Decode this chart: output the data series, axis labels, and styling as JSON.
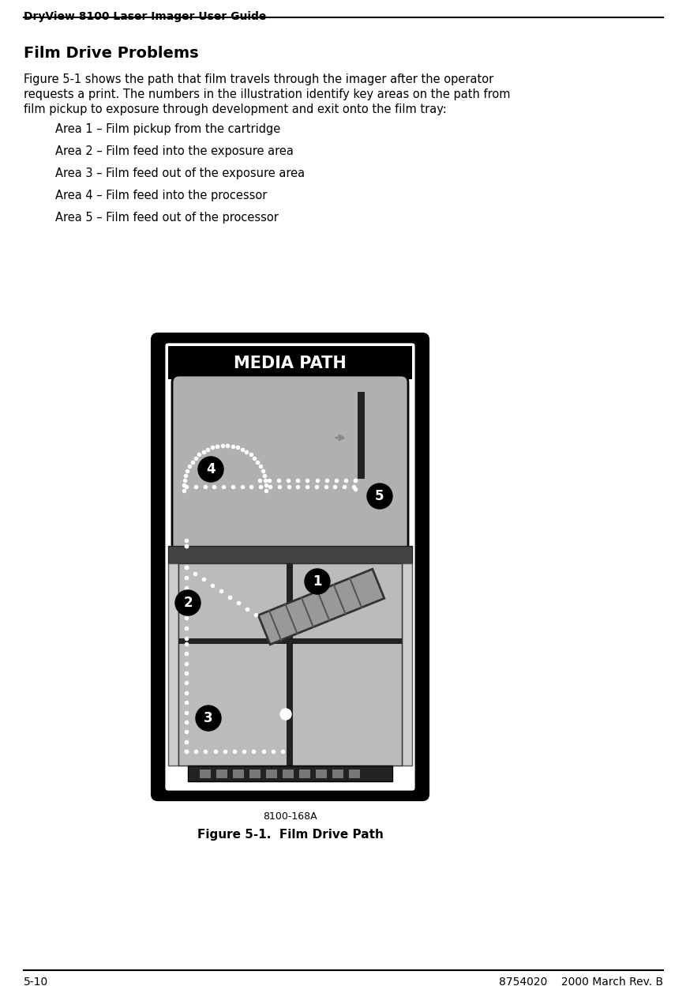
{
  "header_text": "DryView 8100 Laser Imager User Guide",
  "title": "Film Drive Problems",
  "body_text": "Figure 5-1 shows the path that film travels through the imager after the operator\nrequests a print. The numbers in the illustration identify key areas on the path from\nfilm pickup to exposure through development and exit onto the film tray:",
  "area_items": [
    "Area 1 – Film pickup from the cartridge",
    "Area 2 – Film feed into the exposure area",
    "Area 3 – Film feed out of the exposure area",
    "Area 4 – Film feed into the processor",
    "Area 5 – Film feed out of the processor"
  ],
  "figure_caption": "Figure 5-1.  Film Drive Path",
  "figure_label": "8100-168A",
  "footer_left": "5-10",
  "footer_right": "8754020    2000 March Rev. B",
  "media_path_title": "MEDIA PATH",
  "bg_color": "#ffffff",
  "header_font_size": 10,
  "title_font_size": 14,
  "body_font_size": 10.5,
  "area_font_size": 10.5,
  "caption_font_size": 11
}
